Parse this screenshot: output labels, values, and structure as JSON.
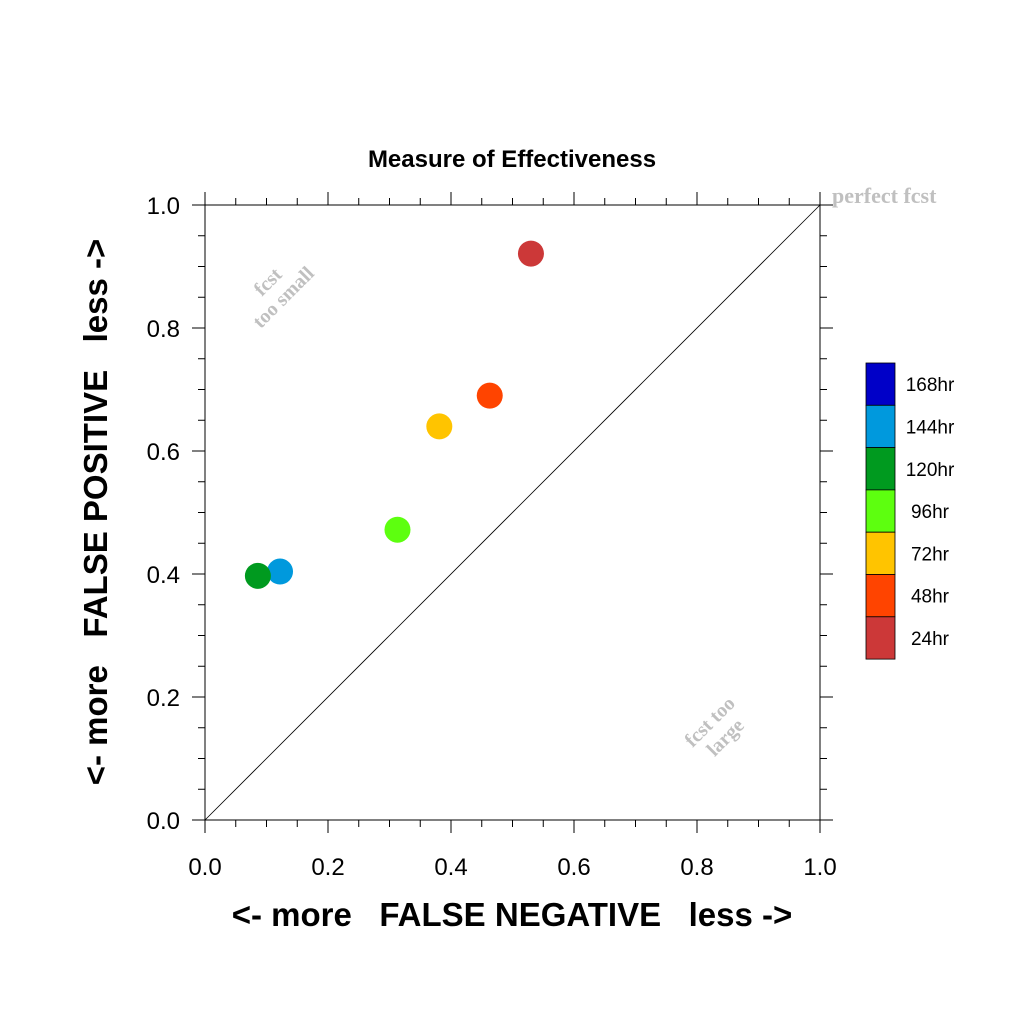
{
  "chart_data": {
    "type": "scatter",
    "title": "Measure of Effectiveness",
    "xlabel": "<- more   FALSE NEGATIVE   less ->",
    "ylabel": "<- more   FALSE POSITIVE   less ->",
    "xlim": [
      0.0,
      1.0
    ],
    "ylim": [
      0.0,
      1.0
    ],
    "x_ticks": [
      "0.0",
      "0.2",
      "0.4",
      "0.6",
      "0.8",
      "1.0"
    ],
    "y_ticks": [
      "0.0",
      "0.2",
      "0.4",
      "0.6",
      "0.8",
      "1.0"
    ],
    "grid": false,
    "legend_position": "right",
    "series": [
      {
        "name": "168hr",
        "color": "#0000c8",
        "points": []
      },
      {
        "name": "144hr",
        "color": "#0099dd",
        "points": [
          [
            0.122,
            0.404
          ]
        ]
      },
      {
        "name": "120hr",
        "color": "#009a1f",
        "points": [
          [
            0.086,
            0.397
          ]
        ]
      },
      {
        "name": "96hr",
        "color": "#5dff0f",
        "points": [
          [
            0.313,
            0.472
          ]
        ]
      },
      {
        "name": "72hr",
        "color": "#ffc400",
        "points": [
          [
            0.381,
            0.64
          ]
        ]
      },
      {
        "name": "48hr",
        "color": "#ff4400",
        "points": [
          [
            0.463,
            0.69
          ]
        ]
      },
      {
        "name": "24hr",
        "color": "#cc3838",
        "points": [
          [
            0.53,
            0.921
          ]
        ]
      }
    ],
    "annotations": {
      "perfect": "perfect fcst",
      "too_small_1": "fcst",
      "too_small_2": "too small",
      "too_large_1": "fcst too",
      "too_large_2": "large"
    },
    "annotation_color": "#c0c0c0"
  }
}
